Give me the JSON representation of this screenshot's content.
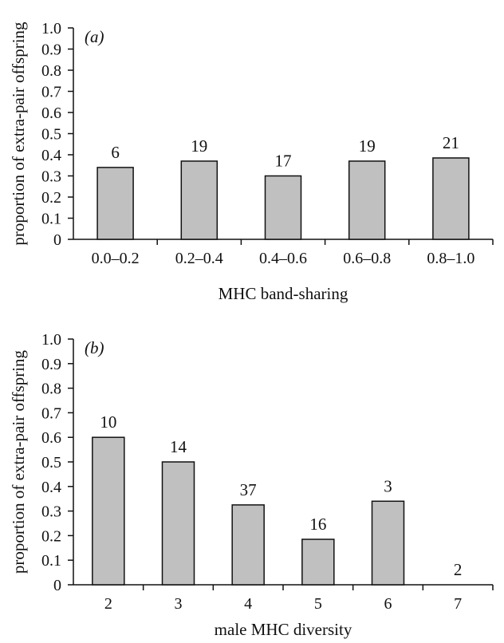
{
  "chart_data": [
    {
      "type": "bar",
      "panel_label": "(a)",
      "categories": [
        "0.0–0.2",
        "0.2–0.4",
        "0.4–0.6",
        "0.6–0.8",
        "0.8–1.0"
      ],
      "values": [
        0.34,
        0.37,
        0.3,
        0.37,
        0.385
      ],
      "data_labels": [
        "6",
        "19",
        "17",
        "19",
        "21"
      ],
      "xlabel": "MHC band-sharing",
      "ylabel": "proportion of extra-pair offspring",
      "ylim": [
        0,
        1.0
      ],
      "yticks": [
        "0",
        "0.1",
        "0.2",
        "0.3",
        "0.4",
        "0.5",
        "0.6",
        "0.7",
        "0.8",
        "0.9",
        "1.0"
      ],
      "bar_color": "#c0c0c0",
      "grid": false
    },
    {
      "type": "bar",
      "panel_label": "(b)",
      "categories": [
        "2",
        "3",
        "4",
        "5",
        "6",
        "7"
      ],
      "values": [
        0.6,
        0.5,
        0.325,
        0.185,
        0.34,
        0.0
      ],
      "data_labels": [
        "10",
        "14",
        "37",
        "16",
        "3",
        "2"
      ],
      "xlabel": "male MHC diversity",
      "ylabel": "proportion of extra-pair offspring",
      "ylim": [
        0,
        1.0
      ],
      "yticks": [
        "0",
        "0.1",
        "0.2",
        "0.3",
        "0.4",
        "0.5",
        "0.6",
        "0.7",
        "0.8",
        "0.9",
        "1.0"
      ],
      "bar_color": "#c0c0c0",
      "grid": false
    }
  ]
}
